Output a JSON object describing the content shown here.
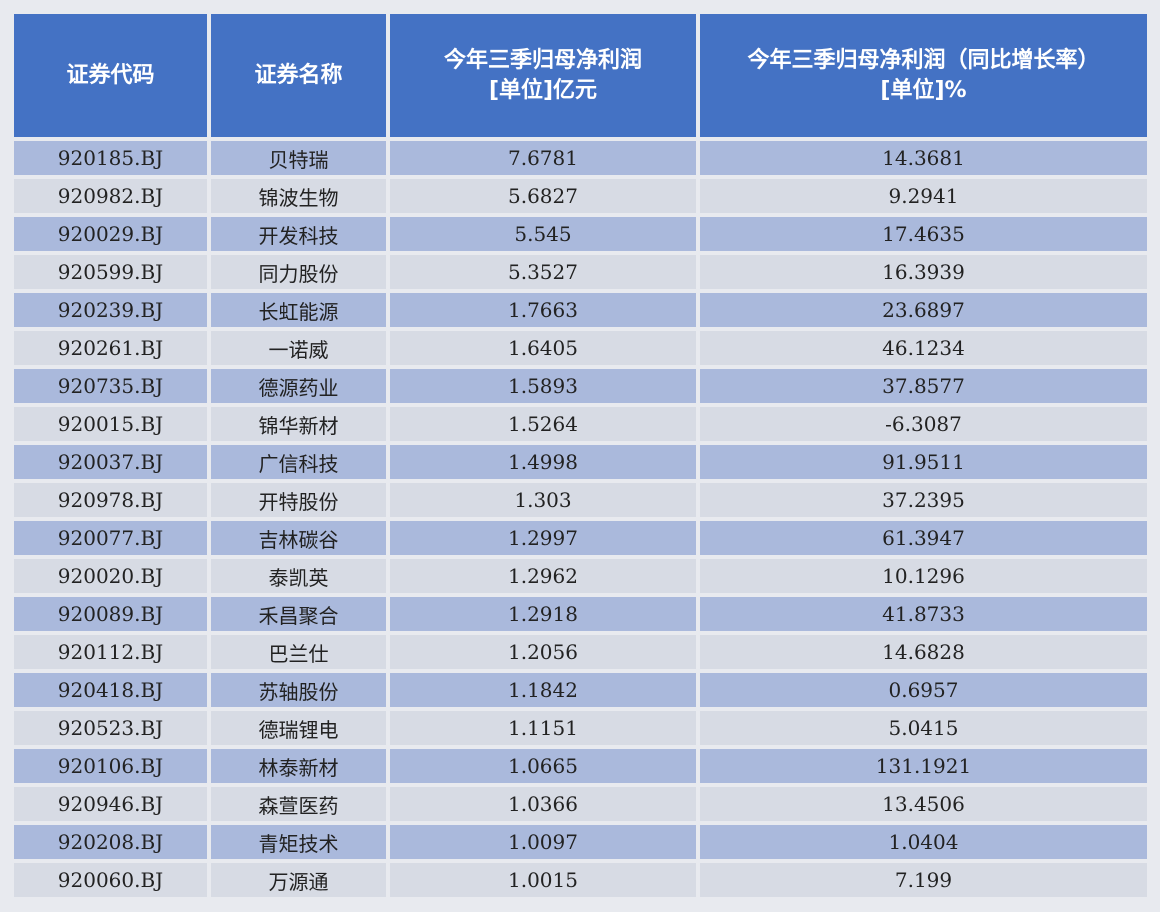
{
  "headers": {
    "code": "证券代码",
    "name": "证券名称",
    "profit_line1": "今年三季归母净利润",
    "profit_line2": "[单位]亿元",
    "growth_line1": "今年三季归母净利润（同比增长率）",
    "growth_line2": "[单位]%"
  },
  "rows": [
    {
      "code": "920185.BJ",
      "name": "贝特瑞",
      "profit": "7.6781",
      "growth": "14.3681"
    },
    {
      "code": "920982.BJ",
      "name": "锦波生物",
      "profit": "5.6827",
      "growth": "9.2941"
    },
    {
      "code": "920029.BJ",
      "name": "开发科技",
      "profit": "5.545",
      "growth": "17.4635"
    },
    {
      "code": "920599.BJ",
      "name": "同力股份",
      "profit": "5.3527",
      "growth": "16.3939"
    },
    {
      "code": "920239.BJ",
      "name": "长虹能源",
      "profit": "1.7663",
      "growth": "23.6897"
    },
    {
      "code": "920261.BJ",
      "name": "一诺威",
      "profit": "1.6405",
      "growth": "46.1234"
    },
    {
      "code": "920735.BJ",
      "name": "德源药业",
      "profit": "1.5893",
      "growth": "37.8577"
    },
    {
      "code": "920015.BJ",
      "name": "锦华新材",
      "profit": "1.5264",
      "growth": "-6.3087"
    },
    {
      "code": "920037.BJ",
      "name": "广信科技",
      "profit": "1.4998",
      "growth": "91.9511"
    },
    {
      "code": "920978.BJ",
      "name": "开特股份",
      "profit": "1.303",
      "growth": "37.2395"
    },
    {
      "code": "920077.BJ",
      "name": "吉林碳谷",
      "profit": "1.2997",
      "growth": "61.3947"
    },
    {
      "code": "920020.BJ",
      "name": "泰凯英",
      "profit": "1.2962",
      "growth": "10.1296"
    },
    {
      "code": "920089.BJ",
      "name": "禾昌聚合",
      "profit": "1.2918",
      "growth": "41.8733"
    },
    {
      "code": "920112.BJ",
      "name": "巴兰仕",
      "profit": "1.2056",
      "growth": "14.6828"
    },
    {
      "code": "920418.BJ",
      "name": "苏轴股份",
      "profit": "1.1842",
      "growth": "0.6957"
    },
    {
      "code": "920523.BJ",
      "name": "德瑞锂电",
      "profit": "1.1151",
      "growth": "5.0415"
    },
    {
      "code": "920106.BJ",
      "name": "林泰新材",
      "profit": "1.0665",
      "growth": "131.1921"
    },
    {
      "code": "920946.BJ",
      "name": "森萱医药",
      "profit": "1.0366",
      "growth": "13.4506"
    },
    {
      "code": "920208.BJ",
      "name": "青矩技术",
      "profit": "1.0097",
      "growth": "1.0404"
    },
    {
      "code": "920060.BJ",
      "name": "万源通",
      "profit": "1.0015",
      "growth": "7.199"
    }
  ],
  "colors": {
    "header_bg": "#4472c4",
    "row_odd_bg": "#aab9dc",
    "row_even_bg": "#d7dbe4"
  }
}
